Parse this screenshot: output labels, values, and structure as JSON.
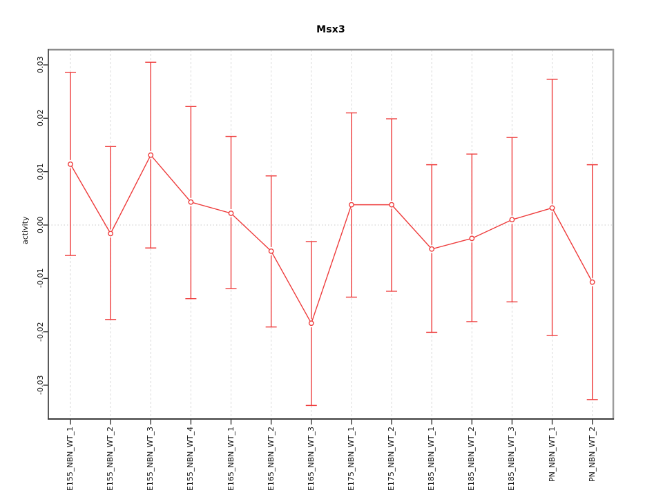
{
  "figure": {
    "background": "#ffffff"
  },
  "chart_data": {
    "type": "line",
    "subtype": "points-with-error-bars",
    "title": "Msx3",
    "xlabel": "",
    "ylabel": "activity",
    "categories": [
      "E155_NBN_WT_1",
      "E155_NBN_WT_2",
      "E155_NBN_WT_3",
      "E155_NBN_WT_4",
      "E165_NBN_WT_1",
      "E165_NBN_WT_2",
      "E165_NBN_WT_3",
      "E175_NBN_WT_1",
      "E175_NBN_WT_2",
      "E185_NBN_WT_1",
      "E185_NBN_WT_2",
      "E185_NBN_WT_3",
      "PN_NBN_WT_1",
      "PN_NBN_WT_2"
    ],
    "series": [
      {
        "name": "activity",
        "marker": "open-circle",
        "color": "#ee3b3b",
        "values": [
          0.0114,
          -0.0016,
          0.0131,
          0.0043,
          0.0022,
          -0.0049,
          -0.0184,
          0.0038,
          0.0038,
          -0.0045,
          -0.0025,
          0.001,
          0.0032,
          -0.0107
        ],
        "error_upper": [
          0.0286,
          0.0147,
          0.0305,
          0.0222,
          0.0166,
          0.0092,
          -0.0031,
          0.021,
          0.0199,
          0.0113,
          0.0133,
          0.0164,
          0.0273,
          0.0113
        ],
        "error_lower": [
          -0.0057,
          -0.0177,
          -0.0043,
          -0.0138,
          -0.0119,
          -0.0191,
          -0.0338,
          -0.0135,
          -0.0124,
          -0.0201,
          -0.0181,
          -0.0144,
          -0.0207,
          -0.0327
        ]
      }
    ],
    "y_axis": {
      "ticks": [
        -0.03,
        -0.02,
        -0.01,
        0,
        0.01,
        0.02,
        0.03
      ],
      "tick_labels": [
        "-0.03",
        "-0.02",
        "-0.01",
        "0.00",
        "0.01",
        "0.02",
        "0.03"
      ],
      "range": [
        -0.0363,
        0.0328
      ]
    },
    "x_axis": {
      "label_rotation": "vertical-reading-bottom-to-top"
    },
    "legend": "none",
    "grid": {
      "vertical_dashed_at_each_category": true,
      "horizontal_dotted_at_zero": true,
      "grid_color": "#dadada",
      "zero_line_color": "#c9c9c9"
    },
    "colors": {
      "series_red": "#ee3b3b",
      "tick_color": "#333333",
      "box_top": "#8c8c8c",
      "box_right": "#9c9c9c",
      "box_left": "#5a5a5a",
      "box_bottom": "#3c3c3c"
    }
  }
}
